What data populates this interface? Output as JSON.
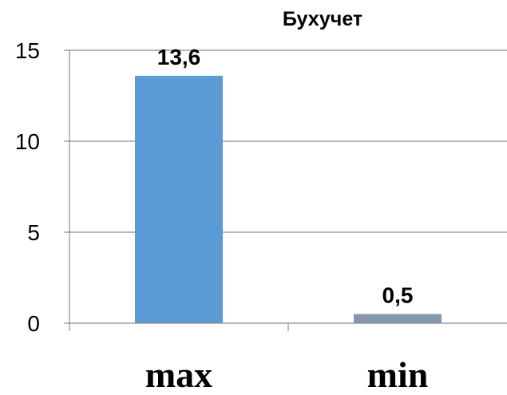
{
  "chart_data": {
    "type": "bar",
    "title": "Бухучет",
    "categories": [
      "max",
      "min"
    ],
    "values": [
      13.6,
      0.5
    ],
    "value_labels": [
      "13,6",
      "0,5"
    ],
    "bar_colors": [
      "#5b9bd5",
      "#8496b0"
    ],
    "yticks": [
      0,
      5,
      10,
      15
    ],
    "ytick_labels": [
      "0",
      "5",
      "10",
      "15"
    ],
    "ylim": [
      0,
      15
    ],
    "xlabel": "",
    "ylabel": "",
    "grid": true,
    "legend": "none"
  }
}
